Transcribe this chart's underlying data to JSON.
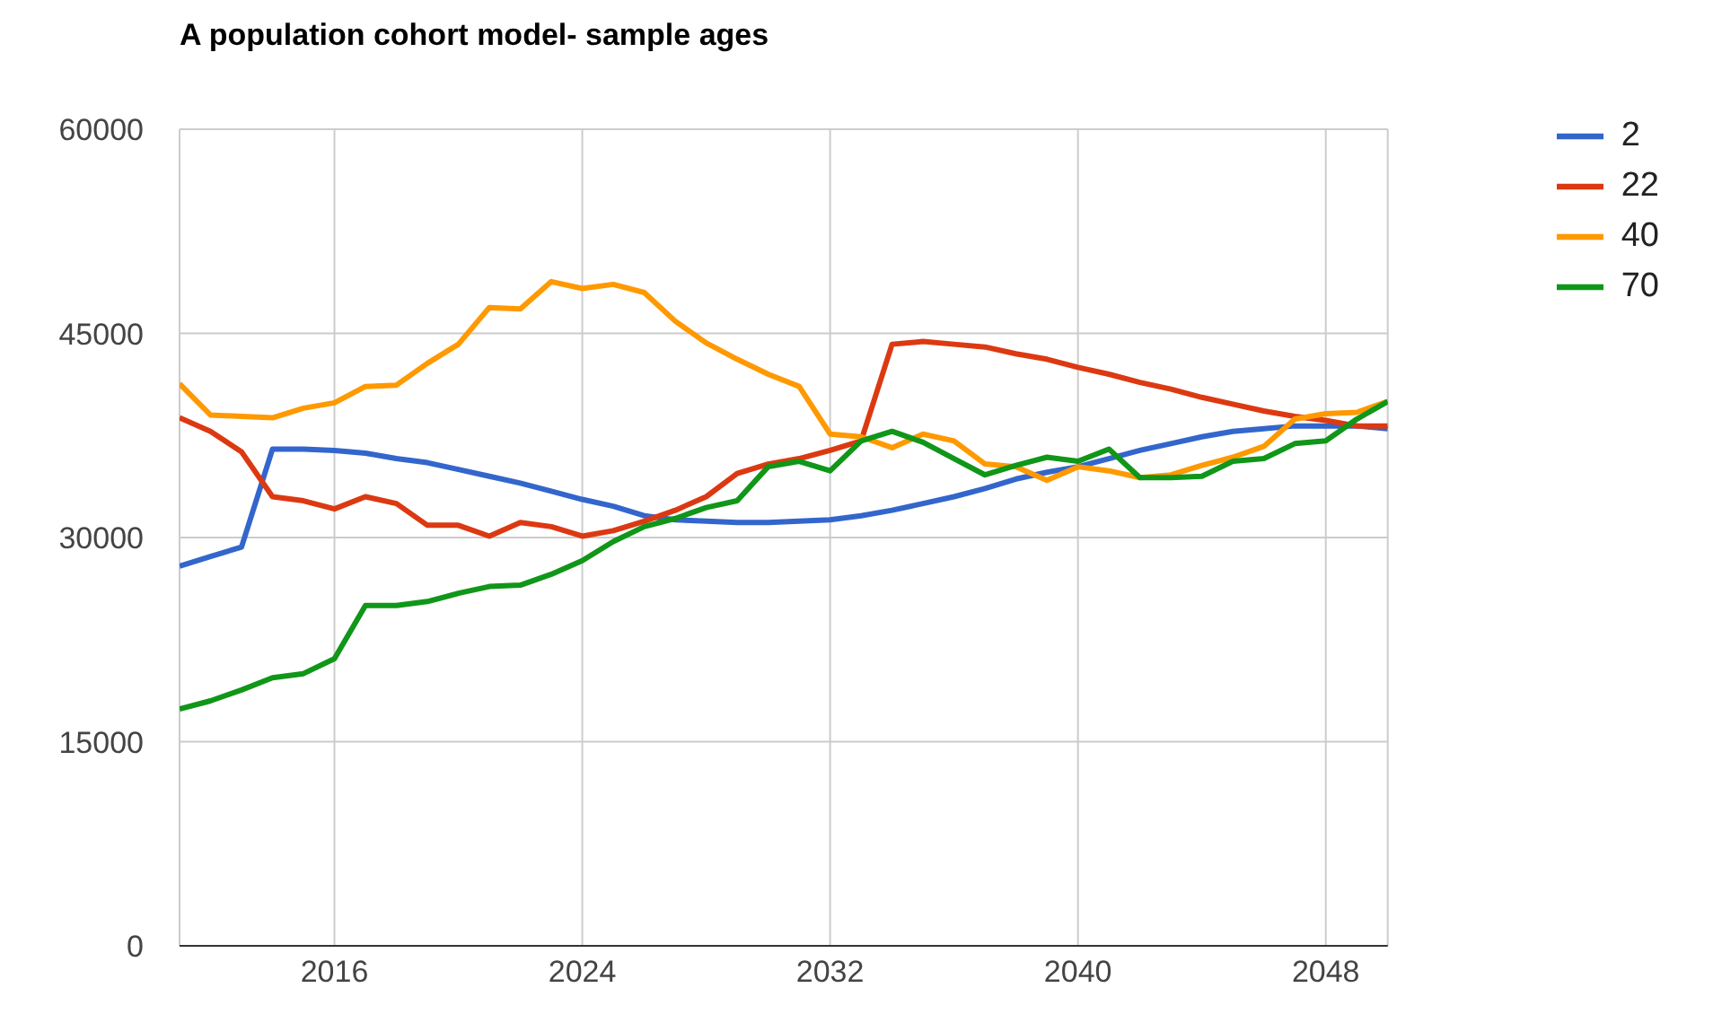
{
  "chart_data": {
    "type": "line",
    "title": "A population cohort model- sample ages",
    "x": [
      2011,
      2012,
      2013,
      2014,
      2015,
      2016,
      2017,
      2018,
      2019,
      2020,
      2021,
      2022,
      2023,
      2024,
      2025,
      2026,
      2027,
      2028,
      2029,
      2030,
      2031,
      2032,
      2033,
      2034,
      2035,
      2036,
      2037,
      2038,
      2039,
      2040,
      2041,
      2042,
      2043,
      2044,
      2045,
      2046,
      2047,
      2048,
      2049,
      2050
    ],
    "series": [
      {
        "name": "2",
        "color": "#3366cc",
        "values": [
          27900,
          28600,
          29300,
          36500,
          36500,
          36400,
          36200,
          35800,
          35500,
          35000,
          34500,
          34000,
          33400,
          32800,
          32300,
          31600,
          31300,
          31200,
          31100,
          31100,
          31200,
          31300,
          31600,
          32000,
          32500,
          33000,
          33600,
          34300,
          34800,
          35200,
          35800,
          36400,
          36900,
          37400,
          37800,
          38000,
          38200,
          38200,
          38200,
          38000
        ]
      },
      {
        "name": "22",
        "color": "#dc3912",
        "values": [
          38800,
          37800,
          36300,
          33000,
          32700,
          32100,
          33000,
          32500,
          30900,
          30900,
          30100,
          31100,
          30800,
          30100,
          30500,
          31200,
          32000,
          33000,
          34700,
          35400,
          35800,
          36400,
          37100,
          44200,
          44400,
          44200,
          44000,
          43500,
          43100,
          42500,
          42000,
          41400,
          40900,
          40300,
          39800,
          39300,
          38900,
          38600,
          38200,
          38200
        ]
      },
      {
        "name": "40",
        "color": "#ff9900",
        "values": [
          41300,
          39000,
          38900,
          38800,
          39500,
          39900,
          41100,
          41200,
          42800,
          44200,
          46900,
          46800,
          48800,
          48300,
          48600,
          48000,
          45900,
          44300,
          43100,
          42000,
          41100,
          37600,
          37400,
          36600,
          37600,
          37100,
          35400,
          35200,
          34200,
          35200,
          34900,
          34400,
          34600,
          35300,
          35900,
          36700,
          38700,
          39100,
          39200,
          40000
        ]
      },
      {
        "name": "70",
        "color": "#109618",
        "values": [
          17400,
          18000,
          18800,
          19700,
          20000,
          21100,
          25000,
          25000,
          25300,
          25900,
          26400,
          26500,
          27300,
          28300,
          29700,
          30800,
          31400,
          32200,
          32700,
          35200,
          35600,
          34900,
          37100,
          37800,
          37000,
          35800,
          34600,
          35300,
          35900,
          35600,
          36500,
          34400,
          34400,
          34500,
          35600,
          35800,
          36900,
          37100,
          38700,
          40000
        ]
      }
    ],
    "xlim": [
      2011,
      2050
    ],
    "xticks": [
      2016,
      2024,
      2032,
      2040,
      2048
    ],
    "ylim": [
      0,
      60000
    ],
    "yticks": [
      0,
      15000,
      30000,
      45000,
      60000
    ],
    "grid": true,
    "legend": "top right",
    "marker": "none",
    "line_style": "solid"
  }
}
